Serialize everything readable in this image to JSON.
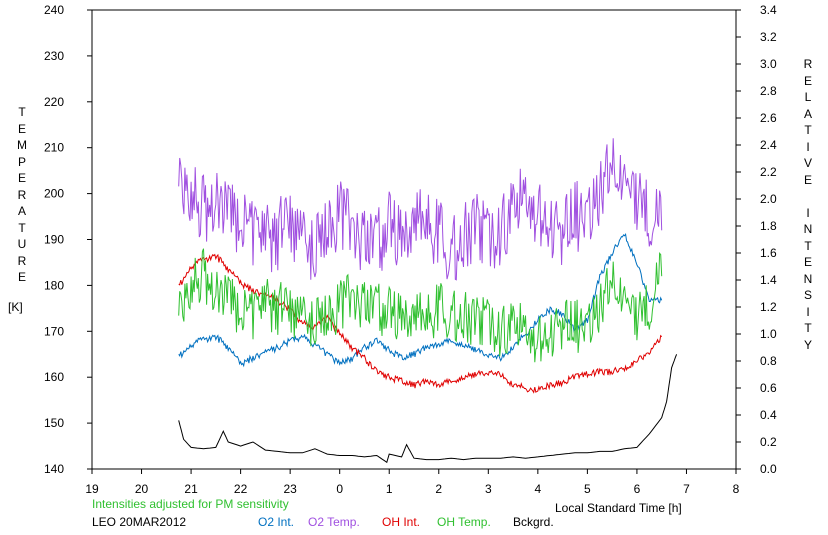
{
  "chart_data": {
    "type": "line",
    "left_axis": {
      "label": "TEMPERATURE",
      "unit": "[K]",
      "range": [
        140,
        240
      ],
      "ticks": [
        "140",
        "150",
        "160",
        "170",
        "180",
        "190",
        "200",
        "210",
        "220",
        "230",
        "240"
      ]
    },
    "right_axis": {
      "label": "RELATIVE INTENSITY",
      "range": [
        0.0,
        3.4
      ],
      "ticks": [
        "0.0",
        "0.2",
        "0.4",
        "0.6",
        "0.8",
        "1.0",
        "1.2",
        "1.4",
        "1.6",
        "1.8",
        "2.0",
        "2.2",
        "2.4",
        "2.6",
        "2.8",
        "3.0",
        "3.2",
        "3.4"
      ]
    },
    "x_axis": {
      "label": "Local Standard Time [h]",
      "ticks": [
        "19",
        "20",
        "21",
        "22",
        "23",
        "0",
        "1",
        "2",
        "3",
        "4",
        "5",
        "6",
        "7",
        "8"
      ]
    },
    "grid": false,
    "note": "Intensities adjusted for PM sensitivity",
    "station": "LEO 20MAR2012",
    "series": [
      {
        "name": "O2 Int.",
        "color": "#0070c0",
        "axis": "right",
        "x": [
          20.75,
          21.0,
          21.25,
          21.5,
          21.75,
          22.0,
          22.25,
          22.5,
          22.75,
          23.0,
          23.25,
          23.5,
          23.75,
          24.0,
          24.25,
          24.5,
          24.75,
          25.0,
          25.25,
          25.5,
          25.75,
          26.0,
          26.25,
          26.5,
          26.75,
          27.0,
          27.25,
          27.5,
          27.75,
          28.0,
          28.25,
          28.5,
          28.75,
          29.0,
          29.25,
          29.5,
          29.75,
          30.0,
          30.25,
          30.5
        ],
        "values": [
          0.83,
          0.92,
          0.96,
          0.98,
          0.9,
          0.78,
          0.82,
          0.86,
          0.9,
          0.95,
          0.98,
          0.92,
          0.85,
          0.78,
          0.82,
          0.9,
          0.95,
          0.88,
          0.82,
          0.85,
          0.9,
          0.92,
          0.95,
          0.92,
          0.88,
          0.85,
          0.82,
          0.9,
          1.0,
          1.1,
          1.18,
          1.15,
          1.02,
          1.1,
          1.42,
          1.6,
          1.75,
          1.52,
          1.25,
          1.25
        ]
      },
      {
        "name": "O2 Temp.",
        "color": "#a050e0",
        "axis": "left",
        "x": [
          20.75,
          21.0,
          21.25,
          21.5,
          21.75,
          22.0,
          22.25,
          22.5,
          22.75,
          23.0,
          23.25,
          23.5,
          23.75,
          24.0,
          24.25,
          24.5,
          24.75,
          25.0,
          25.25,
          25.5,
          25.75,
          26.0,
          26.25,
          26.5,
          26.75,
          27.0,
          27.25,
          27.5,
          27.75,
          28.0,
          28.25,
          28.5,
          28.75,
          29.0,
          29.25,
          29.5,
          29.75,
          30.0,
          30.25,
          30.5
        ],
        "values": [
          205,
          200,
          196,
          198,
          194,
          195,
          192,
          190,
          191,
          193,
          190,
          188,
          192,
          195,
          192,
          190,
          189,
          193,
          190,
          192,
          194,
          191,
          188,
          190,
          193,
          190,
          192,
          196,
          199,
          197,
          194,
          192,
          195,
          196,
          200,
          205,
          204,
          200,
          196,
          192
        ]
      },
      {
        "name": "OH Int.",
        "color": "#e00000",
        "axis": "right",
        "x": [
          20.75,
          21.0,
          21.25,
          21.5,
          21.75,
          22.0,
          22.25,
          22.5,
          22.75,
          23.0,
          23.25,
          23.5,
          23.75,
          24.0,
          24.25,
          24.5,
          24.75,
          25.0,
          25.25,
          25.5,
          25.75,
          26.0,
          26.25,
          26.5,
          26.75,
          27.0,
          27.25,
          27.5,
          27.75,
          28.0,
          28.25,
          28.5,
          28.75,
          29.0,
          29.25,
          29.5,
          29.75,
          30.0,
          30.25,
          30.5
        ],
        "values": [
          1.35,
          1.5,
          1.55,
          1.58,
          1.48,
          1.38,
          1.32,
          1.28,
          1.25,
          1.18,
          1.08,
          1.05,
          1.12,
          1.0,
          0.9,
          0.82,
          0.72,
          0.68,
          0.65,
          0.62,
          0.65,
          0.62,
          0.65,
          0.68,
          0.7,
          0.72,
          0.7,
          0.62,
          0.6,
          0.58,
          0.62,
          0.64,
          0.68,
          0.7,
          0.72,
          0.72,
          0.75,
          0.8,
          0.86,
          0.98
        ]
      },
      {
        "name": "OH Temp.",
        "color": "#30c030",
        "axis": "left",
        "x": [
          20.75,
          21.0,
          21.25,
          21.5,
          21.75,
          22.0,
          22.25,
          22.5,
          22.75,
          23.0,
          23.25,
          23.5,
          23.75,
          24.0,
          24.25,
          24.5,
          24.75,
          25.0,
          25.25,
          25.5,
          25.75,
          26.0,
          26.25,
          26.5,
          26.75,
          27.0,
          27.25,
          27.5,
          27.75,
          28.0,
          28.25,
          28.5,
          28.75,
          29.0,
          29.25,
          29.5,
          29.75,
          30.0,
          30.25,
          30.5
        ],
        "values": [
          176,
          180,
          182,
          178,
          176,
          175,
          174,
          176,
          175,
          174,
          173,
          172,
          173,
          175,
          177,
          176,
          175,
          174,
          173,
          172,
          173,
          175,
          174,
          173,
          172,
          172,
          170,
          171,
          170,
          169,
          170,
          172,
          171,
          172,
          175,
          180,
          178,
          174,
          176,
          182
        ]
      },
      {
        "name": "Bckgrd.",
        "color": "#000000",
        "axis": "right",
        "x": [
          20.75,
          20.85,
          21.0,
          21.25,
          21.5,
          21.65,
          21.75,
          22.0,
          22.25,
          22.5,
          22.75,
          23.0,
          23.25,
          23.5,
          23.75,
          24.0,
          24.25,
          24.5,
          24.75,
          24.95,
          25.0,
          25.25,
          25.35,
          25.5,
          25.75,
          26.0,
          26.25,
          26.5,
          26.75,
          27.0,
          27.25,
          27.5,
          27.75,
          28.0,
          28.25,
          28.5,
          28.75,
          29.0,
          29.25,
          29.5,
          29.75,
          30.0,
          30.25,
          30.5,
          30.6,
          30.7,
          30.8
        ],
        "values": [
          0.36,
          0.22,
          0.16,
          0.15,
          0.16,
          0.28,
          0.2,
          0.17,
          0.2,
          0.14,
          0.13,
          0.12,
          0.12,
          0.15,
          0.11,
          0.1,
          0.1,
          0.09,
          0.1,
          0.05,
          0.11,
          0.09,
          0.18,
          0.08,
          0.07,
          0.07,
          0.08,
          0.07,
          0.08,
          0.08,
          0.08,
          0.09,
          0.08,
          0.09,
          0.1,
          0.11,
          0.12,
          0.12,
          0.13,
          0.13,
          0.15,
          0.16,
          0.26,
          0.38,
          0.5,
          0.75,
          0.85
        ]
      }
    ]
  }
}
